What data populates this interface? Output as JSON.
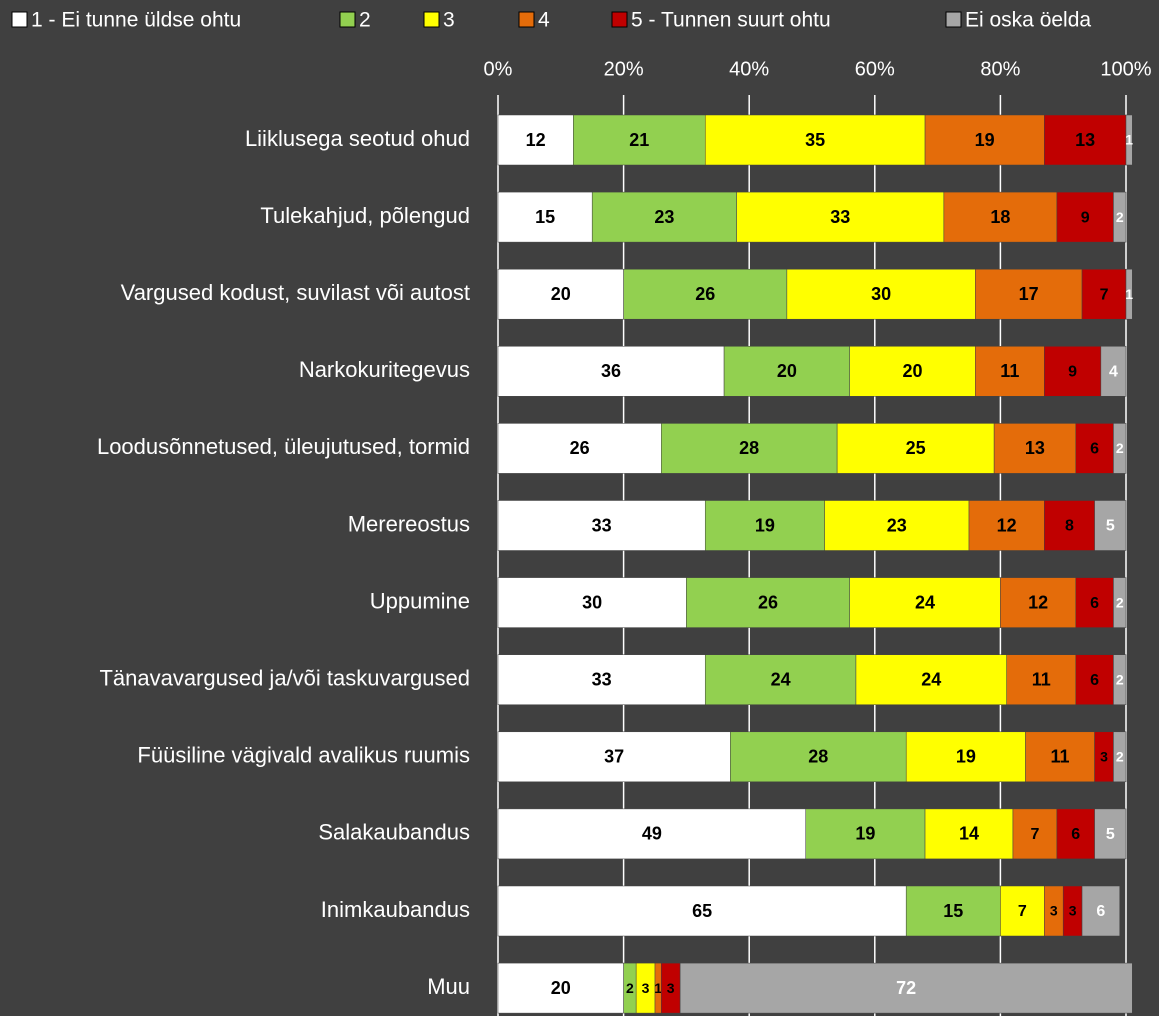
{
  "chart_data": {
    "type": "stacked_barh",
    "categories": [
      "Liiklusega seotud ohud",
      "Tulekahjud, põlengud",
      "Vargused kodust, suvilast või autost",
      "Narkokuritegevus",
      "Loodusõnnetused, üleujutused, tormid",
      "Merereostus",
      "Uppumine",
      "Tänavavargused ja/või taskuvargused",
      "Füüsiline vägivald avalikus ruumis",
      "Salakaubandus",
      "Inimkaubandus",
      "Muu"
    ],
    "series": [
      {
        "name": "1 - Ei tunne üldse ohtu",
        "color": "#ffffff",
        "values": [
          12,
          15,
          20,
          36,
          26,
          33,
          30,
          33,
          37,
          49,
          65,
          20
        ]
      },
      {
        "name": "2",
        "color": "#92d050",
        "values": [
          21,
          23,
          26,
          20,
          28,
          19,
          26,
          24,
          28,
          19,
          15,
          2
        ]
      },
      {
        "name": "3",
        "color": "#ffff00",
        "values": [
          35,
          33,
          30,
          20,
          25,
          23,
          24,
          24,
          19,
          14,
          7,
          3
        ]
      },
      {
        "name": "4",
        "color": "#e46c0a",
        "values": [
          19,
          18,
          17,
          11,
          13,
          12,
          12,
          11,
          11,
          7,
          3,
          1
        ]
      },
      {
        "name": "5 - Tunnen suurt ohtu",
        "color": "#c00000",
        "values": [
          13,
          9,
          7,
          9,
          6,
          8,
          6,
          6,
          3,
          6,
          3,
          3
        ]
      },
      {
        "name": "Ei oska öelda",
        "color": "#a6a6a6",
        "values": [
          1,
          2,
          1,
          4,
          2,
          5,
          2,
          2,
          2,
          5,
          6,
          72
        ]
      }
    ],
    "xlim": [
      0,
      100
    ],
    "xticks": [
      {
        "value": 0,
        "label": "0%"
      },
      {
        "value": 20,
        "label": "20%"
      },
      {
        "value": 40,
        "label": "40%"
      },
      {
        "value": 60,
        "label": "60%"
      },
      {
        "value": 80,
        "label": "80%"
      },
      {
        "value": 100,
        "label": "100%"
      }
    ],
    "grid": true
  }
}
